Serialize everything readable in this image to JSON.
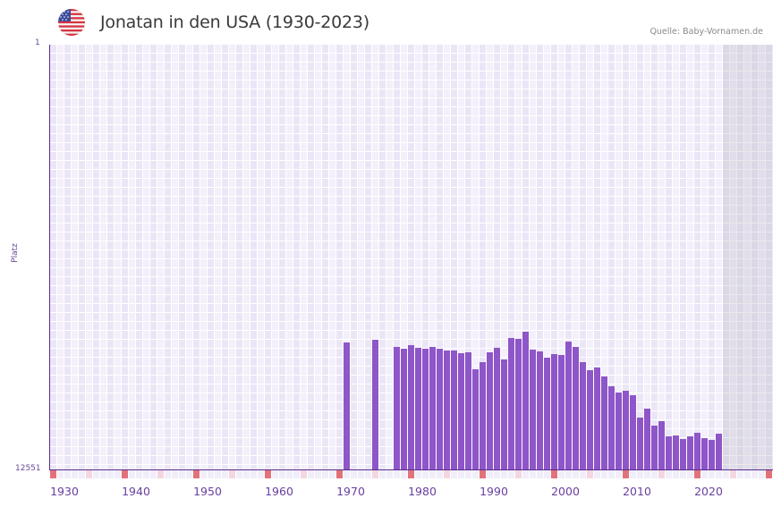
{
  "header": {
    "flag_icon": "usa-flag-icon",
    "title": "Jonatan in den USA (1930-2023)",
    "source": "Quelle: Baby-Vornamen.de"
  },
  "colors": {
    "bar": "#8e56c8",
    "axis": "#5b2d8e",
    "grid_light": "#f3f0fb",
    "grid_dark": "#ebe6f6",
    "decade_marker": "#e2727a",
    "half_decade_marker": "#f4d6df",
    "year_marker": "#f1eefa",
    "future_zone": "#e3dfea"
  },
  "chart_data": {
    "type": "bar",
    "title": "Jonatan in den USA (1930-2023)",
    "xlabel": "",
    "ylabel": "Platz",
    "y_scale": "log",
    "y_inverted": true,
    "ylim": [
      12551,
      1
    ],
    "y_tick_labels": [
      "1",
      "12551"
    ],
    "x_range": [
      1930,
      2030
    ],
    "x_tick_labels": [
      "1930",
      "1940",
      "1950",
      "1960",
      "1970",
      "1980",
      "1990",
      "2000",
      "2010",
      "2020"
    ],
    "future_shaded_from": 2024,
    "grid": true,
    "legend": null,
    "categories": [
      1971,
      1975,
      1978,
      1979,
      1980,
      1981,
      1982,
      1983,
      1984,
      1985,
      1986,
      1987,
      1988,
      1989,
      1990,
      1991,
      1992,
      1993,
      1994,
      1995,
      1996,
      1997,
      1998,
      1999,
      2000,
      2001,
      2002,
      2003,
      2004,
      2005,
      2006,
      2007,
      2008,
      2009,
      2010,
      2011,
      2012,
      2013,
      2014,
      2015,
      2016,
      2017,
      2018,
      2019,
      2020,
      2021,
      2022,
      2023
    ],
    "series": [
      {
        "name": "Platz",
        "values": [
          747,
          704,
          825,
          859,
          793,
          842,
          859,
          825,
          859,
          893,
          893,
          948,
          930,
          1356,
          1157,
          930,
          842,
          1090,
          677,
          690,
          589,
          876,
          911,
          1048,
          967,
          987,
          732,
          825,
          1157,
          1383,
          1303,
          1590,
          1978,
          2272,
          2184,
          2412,
          3965,
          3250,
          4741,
          4293,
          6018,
          5899,
          6389,
          6018,
          5558,
          6262,
          6517,
          5670
        ]
      }
    ]
  },
  "axis": {
    "y_top_label": "1",
    "y_bottom_label": "12551",
    "y_title": "Platz",
    "x_labels": [
      "1930",
      "1940",
      "1950",
      "1960",
      "1970",
      "1980",
      "1990",
      "2000",
      "2010",
      "2020"
    ]
  }
}
